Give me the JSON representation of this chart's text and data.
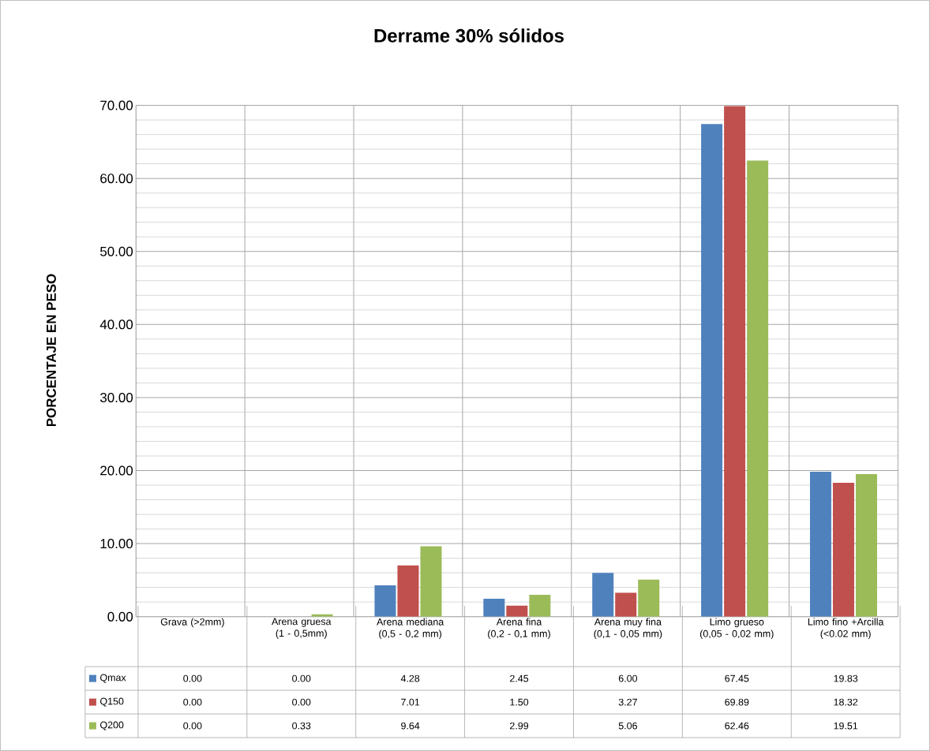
{
  "chart_data": {
    "type": "bar",
    "title": "Derrame 30% sólidos",
    "ylabel": "PORCENTAJE EN PESO",
    "categories": [
      "Grava (>2mm)",
      "Arena gruesa (1 - 0,5mm)",
      "Arena mediana (0,5 - 0,2 mm)",
      "Arena fina (0,2 - 0,1 mm)",
      "Arena muy fina (0,1 - 0,05 mm)",
      "Limo grueso (0,05 - 0,02 mm)",
      "Limo fino +Arcilla (<0.02 mm)"
    ],
    "series": [
      {
        "name": "Qmax",
        "color": "#4f81bd",
        "values": [
          0.0,
          0.0,
          4.28,
          2.45,
          6.0,
          67.45,
          19.83
        ],
        "value_labels": [
          "0.00",
          "0.00",
          "4.28",
          "2.45",
          "6.00",
          "67.45",
          "19.83"
        ]
      },
      {
        "name": "Q150",
        "color": "#c0504d",
        "values": [
          0.0,
          0.0,
          7.01,
          1.5,
          3.27,
          69.89,
          18.32
        ],
        "value_labels": [
          "0.00",
          "0.00",
          "7.01",
          "1.50",
          "3.27",
          "69.89",
          "18.32"
        ]
      },
      {
        "name": "Q200",
        "color": "#9bbb59",
        "values": [
          0.0,
          0.33,
          9.64,
          2.99,
          5.06,
          62.46,
          19.51
        ],
        "value_labels": [
          "0.00",
          "0.33",
          "9.64",
          "2.99",
          "5.06",
          "62.46",
          "19.51"
        ]
      }
    ],
    "ylim": [
      0,
      70
    ],
    "yticks": [
      {
        "value": 0,
        "label": "0.00"
      },
      {
        "value": 10,
        "label": "10.00"
      },
      {
        "value": 20,
        "label": "20.00"
      },
      {
        "value": 30,
        "label": "30.00"
      },
      {
        "value": 40,
        "label": "40.00"
      },
      {
        "value": 50,
        "label": "50.00"
      },
      {
        "value": 60,
        "label": "60.00"
      },
      {
        "value": 70,
        "label": "70.00"
      }
    ],
    "grid": true,
    "legend": "bottom"
  }
}
